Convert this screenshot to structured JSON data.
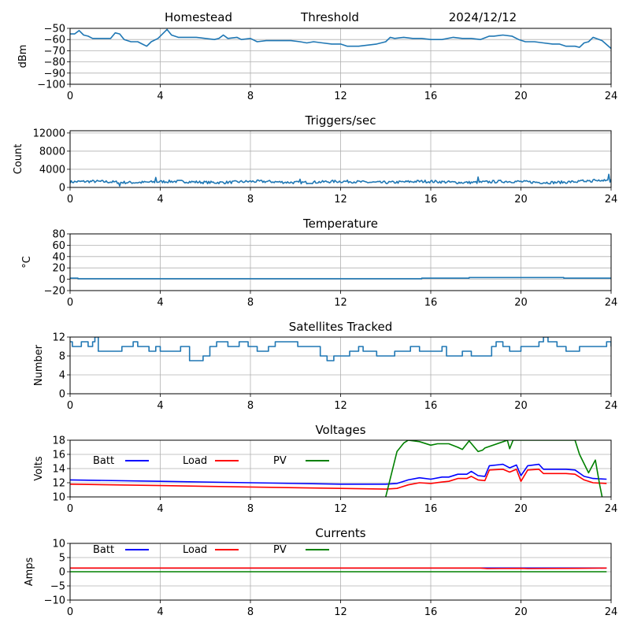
{
  "header": {
    "site": "Homestead",
    "mode": "Threshold",
    "date": "2024/12/12"
  },
  "chart_data": [
    {
      "id": "signal",
      "type": "line",
      "title": "",
      "xlabel": "",
      "ylabel": "dBm",
      "xlim": [
        0,
        24
      ],
      "ylim": [
        -100,
        -50
      ],
      "xticks": [
        0,
        4,
        8,
        12,
        16,
        20,
        24
      ],
      "yticks": [
        -50,
        -60,
        -70,
        -80,
        -90,
        -100
      ],
      "ytick_labels": [
        "−50",
        "−60",
        "−70",
        "−80",
        "−90",
        "−100"
      ],
      "grid": true,
      "series": [
        {
          "name": "signal",
          "color": "#1f77b4",
          "x": [
            0,
            0.2,
            0.4,
            0.6,
            0.8,
            1.0,
            1.4,
            1.8,
            2.0,
            2.2,
            2.4,
            2.7,
            3.0,
            3.2,
            3.4,
            3.6,
            3.9,
            4.1,
            4.3,
            4.5,
            4.8,
            5.2,
            5.6,
            6.0,
            6.4,
            6.6,
            6.8,
            7.0,
            7.4,
            7.6,
            8.0,
            8.3,
            8.7,
            9.2,
            9.8,
            10.2,
            10.5,
            10.8,
            11.2,
            11.6,
            12.0,
            12.3,
            12.8,
            13.2,
            13.6,
            14.0,
            14.2,
            14.4,
            14.8,
            15.2,
            15.6,
            16.0,
            16.5,
            17.0,
            17.4,
            17.8,
            18.2,
            18.6,
            18.8,
            19.2,
            19.6,
            19.9,
            20.2,
            20.6,
            21.0,
            21.4,
            21.7,
            22.0,
            22.4,
            22.6,
            22.8,
            23.0,
            23.2,
            23.6,
            24.0
          ],
          "y": [
            -55,
            -55,
            -52,
            -56,
            -57,
            -59,
            -59,
            -59,
            -54,
            -55,
            -60,
            -62,
            -62,
            -64,
            -66,
            -62,
            -59,
            -55,
            -51,
            -56,
            -58,
            -58,
            -58,
            -59,
            -60,
            -59,
            -56,
            -59,
            -58,
            -60,
            -59,
            -62,
            -61,
            -61,
            -61,
            -62,
            -63,
            -62,
            -63,
            -64,
            -64,
            -66,
            -66,
            -65,
            -64,
            -62,
            -58,
            -59,
            -58,
            -59,
            -59,
            -60,
            -60,
            -58,
            -59,
            -59,
            -60,
            -57,
            -57,
            -56,
            -57,
            -60,
            -62,
            -62,
            -63,
            -64,
            -64,
            -66,
            -66,
            -67,
            -63,
            -62,
            -58,
            -61,
            -68
          ]
        }
      ]
    },
    {
      "id": "triggers",
      "type": "line",
      "title": "Triggers/sec",
      "xlabel": "",
      "ylabel": "Count",
      "xlim": [
        0,
        24
      ],
      "ylim": [
        0,
        12500
      ],
      "xticks": [
        0,
        4,
        8,
        12,
        16,
        20,
        24
      ],
      "yticks": [
        0,
        4000,
        8000,
        12000
      ],
      "ytick_labels": [
        "0",
        "4000",
        "8000",
        "12000"
      ],
      "grid": true,
      "series": [
        {
          "name": "triggers",
          "color": "#1f77b4",
          "baseline": 1200,
          "noise": 300,
          "spikes": [
            [
              2.2,
              300
            ],
            [
              3.8,
              2200
            ],
            [
              10.2,
              1800
            ],
            [
              18.1,
              2300
            ],
            [
              23.9,
              2900
            ]
          ]
        }
      ]
    },
    {
      "id": "temperature",
      "type": "line",
      "title": "Temperature",
      "xlabel": "",
      "ylabel": "°C",
      "xlim": [
        0,
        24
      ],
      "ylim": [
        -20,
        80
      ],
      "xticks": [
        0,
        4,
        8,
        12,
        16,
        20,
        24
      ],
      "yticks": [
        80,
        60,
        40,
        20,
        0,
        -20
      ],
      "ytick_labels": [
        "80",
        "60",
        "40",
        "20",
        "0",
        "−20"
      ],
      "grid": true,
      "series": [
        {
          "name": "temperature",
          "color": "#1f77b4",
          "step": true,
          "x": [
            0,
            0.35,
            15.6,
            17.7,
            21.9,
            24
          ],
          "y": [
            2,
            1,
            2,
            3,
            2,
            2
          ]
        }
      ]
    },
    {
      "id": "satellites",
      "type": "line",
      "title": "Satellites Tracked",
      "xlabel": "",
      "ylabel": "Number",
      "xlim": [
        0,
        24
      ],
      "ylim": [
        0,
        12
      ],
      "xticks": [
        0,
        4,
        8,
        12,
        16,
        20,
        24
      ],
      "yticks": [
        12,
        8,
        4,
        0
      ],
      "ytick_labels": [
        "12",
        "8",
        "4",
        "0"
      ],
      "grid": true,
      "series": [
        {
          "name": "satellites",
          "color": "#1f77b4",
          "step": true,
          "x": [
            0,
            0.1,
            0.5,
            0.8,
            1.0,
            1.1,
            1.25,
            2.3,
            2.8,
            3.0,
            3.5,
            3.8,
            4.0,
            4.9,
            5.3,
            5.9,
            6.2,
            6.5,
            7.0,
            7.5,
            7.9,
            8.3,
            8.8,
            9.1,
            10.1,
            11.1,
            11.4,
            11.7,
            12.0,
            12.4,
            12.8,
            13.0,
            13.6,
            14.4,
            15.1,
            15.5,
            16.5,
            16.7,
            17.4,
            17.8,
            18.7,
            18.9,
            19.2,
            19.5,
            20.0,
            20.8,
            21.0,
            21.2,
            21.6,
            22.0,
            22.6,
            23.1,
            23.8,
            24
          ],
          "y": [
            11,
            10,
            11,
            10,
            11,
            12,
            9,
            10,
            11,
            10,
            9,
            10,
            9,
            10,
            7,
            8,
            10,
            11,
            10,
            11,
            10,
            9,
            10,
            11,
            10,
            8,
            7,
            8,
            8,
            9,
            10,
            9,
            8,
            9,
            10,
            9,
            10,
            8,
            9,
            8,
            10,
            11,
            10,
            9,
            10,
            11,
            12,
            11,
            10,
            9,
            10,
            10,
            11,
            10
          ]
        }
      ]
    },
    {
      "id": "voltages",
      "type": "line",
      "title": "Voltages",
      "xlabel": "",
      "ylabel": "Volts",
      "xlim": [
        0,
        24
      ],
      "ylim": [
        10,
        18
      ],
      "xticks": [
        0,
        4,
        8,
        12,
        16,
        20,
        24
      ],
      "yticks": [
        18,
        16,
        14,
        12,
        10
      ],
      "ytick_labels": [
        "18",
        "16",
        "14",
        "12",
        "10"
      ],
      "grid": true,
      "legend": {
        "placement": "top-left-inline",
        "entries": [
          "Batt",
          "Load",
          "PV"
        ]
      },
      "series": [
        {
          "name": "Batt",
          "color": "#0000ff",
          "x": [
            0,
            4,
            8,
            12,
            14,
            14.5,
            15.0,
            15.5,
            16.0,
            16.5,
            16.8,
            17.2,
            17.6,
            17.8,
            18.1,
            18.4,
            18.6,
            19.2,
            19.5,
            19.8,
            20.0,
            20.3,
            20.8,
            21.0,
            22.0,
            22.4,
            22.8,
            23.2,
            23.8
          ],
          "y": [
            12.4,
            12.2,
            12.0,
            11.8,
            11.8,
            11.9,
            12.4,
            12.7,
            12.5,
            12.8,
            12.8,
            13.2,
            13.2,
            13.6,
            13.0,
            12.9,
            14.4,
            14.6,
            14.1,
            14.5,
            13.0,
            14.4,
            14.6,
            13.9,
            13.9,
            13.8,
            12.9,
            12.6,
            12.5
          ]
        },
        {
          "name": "Load",
          "color": "#ff0000",
          "x": [
            0,
            4,
            8,
            12,
            14,
            14.5,
            15.0,
            15.5,
            16.0,
            16.5,
            16.8,
            17.2,
            17.6,
            17.8,
            18.1,
            18.4,
            18.6,
            19.2,
            19.5,
            19.8,
            20.0,
            20.3,
            20.8,
            21.0,
            22.0,
            22.4,
            22.8,
            23.2,
            23.8
          ],
          "y": [
            11.8,
            11.6,
            11.4,
            11.2,
            11.1,
            11.2,
            11.7,
            12.0,
            11.9,
            12.1,
            12.2,
            12.6,
            12.6,
            12.9,
            12.4,
            12.3,
            13.8,
            13.9,
            13.5,
            13.9,
            12.2,
            13.8,
            13.9,
            13.3,
            13.3,
            13.2,
            12.4,
            12.0,
            11.9
          ]
        },
        {
          "name": "PV",
          "color": "#008000",
          "x": [
            14.0,
            14.5,
            14.8,
            15.0,
            15.5,
            16.0,
            16.3,
            16.8,
            17.2,
            17.4,
            17.7,
            18.1,
            18.3,
            18.4,
            19.4,
            19.5,
            19.65,
            22.4,
            22.6,
            23.0,
            23.3,
            23.5,
            23.6
          ],
          "y": [
            10.0,
            16.4,
            17.6,
            18.0,
            17.8,
            17.3,
            17.5,
            17.5,
            17.0,
            16.7,
            17.9,
            16.4,
            16.6,
            16.9,
            18.0,
            16.8,
            18.0,
            18.0,
            16.0,
            13.4,
            15.2,
            11.6,
            10.0
          ]
        }
      ]
    },
    {
      "id": "currents",
      "type": "line",
      "title": "Currents",
      "xlabel": "",
      "ylabel": "Amps",
      "xlim": [
        0,
        24
      ],
      "ylim": [
        -10,
        10
      ],
      "xticks": [
        0,
        4,
        8,
        12,
        16,
        20,
        24
      ],
      "yticks": [
        10,
        5,
        0,
        -5,
        -10
      ],
      "ytick_labels": [
        "10",
        "5",
        "0",
        "−5",
        "−10"
      ],
      "grid": true,
      "legend": {
        "placement": "top-left-inline",
        "entries": [
          "Batt",
          "Load",
          "PV"
        ]
      },
      "series": [
        {
          "name": "Batt",
          "color": "#0000ff",
          "x": [
            0,
            23.8
          ],
          "y": [
            1.3,
            1.3
          ]
        },
        {
          "name": "Load",
          "color": "#ff0000",
          "x": [
            0,
            8,
            16,
            18.2,
            18.5,
            20,
            20.3,
            22.5,
            23.8
          ],
          "y": [
            1.3,
            1.3,
            1.3,
            1.3,
            1.1,
            1.2,
            1.1,
            1.2,
            1.3
          ]
        },
        {
          "name": "PV",
          "color": "#008000",
          "x": [
            0,
            23.8
          ],
          "y": [
            0.0,
            0.0
          ]
        }
      ]
    }
  ]
}
